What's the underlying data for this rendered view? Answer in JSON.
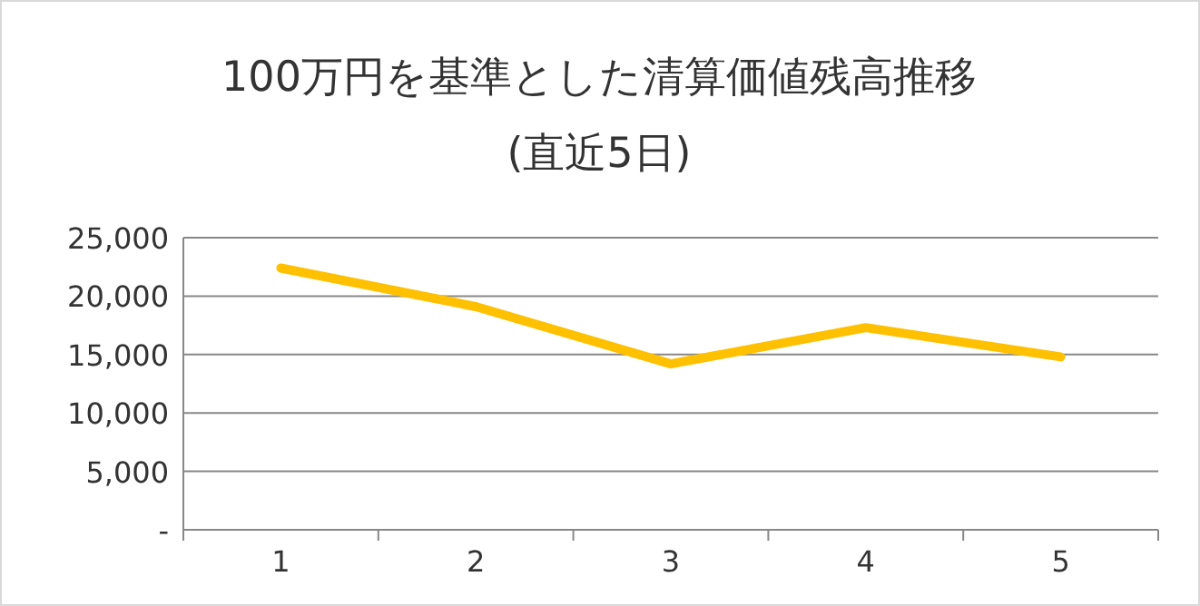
{
  "chart_data": {
    "type": "line",
    "title": "100万円を基準とした清算価値残高推移",
    "subtitle": "(直近5日)",
    "categories": [
      "1",
      "2",
      "3",
      "4",
      "5"
    ],
    "series": [
      {
        "color": "#ffc000",
        "values": [
          22400,
          19100,
          14200,
          17300,
          14800
        ]
      }
    ],
    "ylim": [
      0,
      25000
    ],
    "yticks": [
      {
        "value": 0,
        "label": "-"
      },
      {
        "value": 5000,
        "label": "5,000"
      },
      {
        "value": 10000,
        "label": "10,000"
      },
      {
        "value": 15000,
        "label": "15,000"
      },
      {
        "value": 20000,
        "label": "20,000"
      },
      {
        "value": 25000,
        "label": "25,000"
      }
    ],
    "grid": "y",
    "marker": "none",
    "line_style": "solid"
  }
}
